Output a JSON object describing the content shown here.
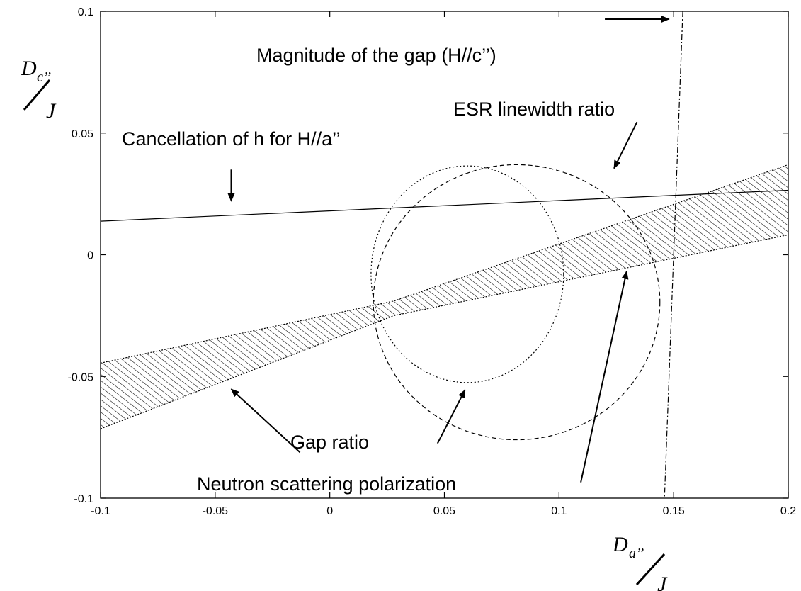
{
  "chart_data": {
    "type": "line",
    "x_axis": {
      "label_symbol": "D",
      "label_subscript": "a’’",
      "label_denominator": "J",
      "range": [
        -0.1,
        0.2
      ],
      "ticks": [
        -0.1,
        -0.05,
        0,
        0.05,
        0.1,
        0.15,
        0.2
      ],
      "tick_labels": [
        "-0.1",
        "-0.05",
        "0",
        "0.05",
        "0.1",
        "0.15",
        "0.2"
      ]
    },
    "y_axis": {
      "label_symbol": "D",
      "label_subscript": "c’’",
      "label_denominator": "J",
      "range": [
        -0.1,
        0.1
      ],
      "ticks": [
        -0.1,
        -0.05,
        0,
        0.05,
        0.1
      ],
      "tick_labels": [
        "-0.1",
        "-0.05",
        "0",
        "0.05",
        "0.1"
      ]
    },
    "grid": false,
    "series": [
      {
        "key": "cancellation",
        "style": "solid",
        "points": [
          [
            -0.1,
            0.0138
          ],
          [
            0.2,
            0.0265
          ]
        ]
      },
      {
        "key": "gap_magnitude",
        "style": "dash-dot",
        "points": [
          [
            0.154,
            0.1
          ],
          [
            0.146,
            -0.1
          ]
        ]
      },
      {
        "key": "esr_linewidth",
        "style": "dashed",
        "shape": "ellipse",
        "center": [
          0.0815,
          -0.0195
        ],
        "radii": [
          0.0625,
          0.0565
        ]
      },
      {
        "key": "gap_ratio",
        "style": "dotted",
        "shape": "ellipse",
        "center": [
          0.06,
          -0.008
        ],
        "radii": [
          0.042,
          0.0445
        ]
      },
      {
        "key": "neutron_polarization",
        "style": "hatched-band",
        "upper": [
          [
            -0.1,
            -0.0445
          ],
          [
            0.028,
            -0.019
          ],
          [
            0.2,
            0.037
          ]
        ],
        "lower": [
          [
            -0.1,
            -0.0715
          ],
          [
            0.028,
            -0.025
          ],
          [
            0.2,
            0.0082
          ]
        ]
      }
    ],
    "annotations": [
      {
        "text": "Magnitude of the gap (H//c’’)",
        "tail": [
          0.12,
          0.0968
        ],
        "head": [
          0.148,
          0.0968
        ]
      },
      {
        "text": "ESR linewidth ratio",
        "tail": [
          0.134,
          0.0545
        ],
        "head": [
          0.124,
          0.0355
        ]
      },
      {
        "text": "Cancellation of h for H//a’’",
        "tail": [
          -0.043,
          0.035
        ],
        "head": [
          -0.043,
          0.022
        ]
      },
      {
        "text": "Gap ratio",
        "tail": [
          0.047,
          -0.0775
        ],
        "head": [
          0.059,
          -0.0555
        ]
      },
      {
        "text": "Neutron scattering polarization",
        "tail": [
          -0.013,
          -0.0812
        ],
        "head": [
          -0.043,
          -0.0552
        ]
      },
      {
        "text": "",
        "tail": [
          0.1095,
          -0.0935
        ],
        "head": [
          0.1295,
          -0.0068
        ]
      }
    ]
  }
}
